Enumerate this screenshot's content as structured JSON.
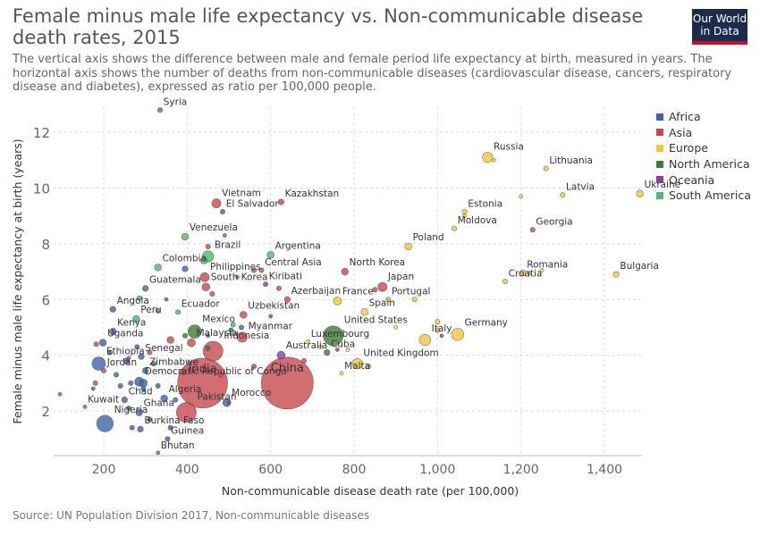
{
  "header": {
    "title": "Female minus male life expectancy vs. Non-communicable disease death rates, 2015",
    "subtitle": "The vertical axis shows the difference between male and female period life expectancy at birth, measured in years. The horizontal axis shows the number of deaths from non-communicable diseases (cardiovascular disease, cancers, respiratory disease and diabetes), expressed as ratio per 100,000 people."
  },
  "logo": {
    "line1": "Our World",
    "line2": "in Data"
  },
  "source": "Source: UN Population Division 2017, Non-communicable diseases",
  "legend": [
    {
      "name": "Africa",
      "color": "#3f63a8"
    },
    {
      "name": "Asia",
      "color": "#c7494f"
    },
    {
      "name": "Europe",
      "color": "#f2c53d"
    },
    {
      "name": "North America",
      "color": "#3e7a3a"
    },
    {
      "name": "Oceania",
      "color": "#8a3fa8"
    },
    {
      "name": "South America",
      "color": "#4fb86f"
    }
  ],
  "chart_data": {
    "type": "scatter",
    "title": "Female minus male life expectancy vs. Non-communicable disease death rates, 2015",
    "xlabel": "Non-communicable disease death rate (per 100,000)",
    "ylabel": "Female minus male life expectancy at birth (years)",
    "xlim": [
      80,
      1490
    ],
    "ylim": [
      0.4,
      12.9
    ],
    "xticks": [
      200,
      400,
      600,
      800,
      1000,
      1200,
      1400
    ],
    "xtick_labels": [
      "200",
      "400",
      "600",
      "800",
      "1,000",
      "1,200",
      "1,400"
    ],
    "yticks": [
      2,
      4,
      6,
      8,
      10,
      12
    ],
    "grid": true,
    "legend_position": "right",
    "points": [
      {
        "label": "Syria",
        "region": "Asia",
        "x": 335,
        "y": 12.8,
        "size": 2
      },
      {
        "label": "Russia",
        "region": "Europe",
        "x": 1120,
        "y": 11.1,
        "size": 7
      },
      {
        "label": "Lithuania",
        "region": "Europe",
        "x": 1260,
        "y": 10.7,
        "size": 2
      },
      {
        "label": "Latvia",
        "region": "Europe",
        "x": 1300,
        "y": 9.75,
        "size": 2
      },
      {
        "label": "Ukraine",
        "region": "Europe",
        "x": 1485,
        "y": 9.8,
        "size": 4
      },
      {
        "label": "Vietnam",
        "region": "Asia",
        "x": 470,
        "y": 9.45,
        "size": 6
      },
      {
        "label": "Kazakhstan",
        "region": "Asia",
        "x": 625,
        "y": 9.5,
        "size": 3
      },
      {
        "label": "El Salvador",
        "region": "North America",
        "x": 485,
        "y": 9.15,
        "size": 2
      },
      {
        "label": "Estonia",
        "region": "Europe",
        "x": 1065,
        "y": 9.15,
        "size": 2
      },
      {
        "label": "Moldova",
        "region": "Europe",
        "x": 1040,
        "y": 8.55,
        "size": 2
      },
      {
        "label": "Georgia",
        "region": "Asia",
        "x": 1228,
        "y": 8.5,
        "size": 2
      },
      {
        "label": "Venezuela",
        "region": "South America",
        "x": 395,
        "y": 8.25,
        "size": 4
      },
      {
        "label": "Poland",
        "region": "Europe",
        "x": 930,
        "y": 7.9,
        "size": 4
      },
      {
        "label": "Argentina",
        "region": "South America",
        "x": 600,
        "y": 7.6,
        "size": 4
      },
      {
        "label": "Brazil",
        "region": "South America",
        "x": 450,
        "y": 7.55,
        "size": 8
      },
      {
        "label": "Colombia",
        "region": "South America",
        "x": 330,
        "y": 7.15,
        "size": 4
      },
      {
        "label": "Central Asia",
        "region": "Asia",
        "x": 578,
        "y": 7.05,
        "size": 2
      },
      {
        "label": "North Korea",
        "region": "Asia",
        "x": 778,
        "y": 7.0,
        "size": 4
      },
      {
        "label": "Romania",
        "region": "Europe",
        "x": 1205,
        "y": 6.95,
        "size": 3
      },
      {
        "label": "Bulgaria",
        "region": "Europe",
        "x": 1428,
        "y": 6.9,
        "size": 3
      },
      {
        "label": "Philippines",
        "region": "Asia",
        "x": 442,
        "y": 6.8,
        "size": 6
      },
      {
        "label": "Croatia",
        "region": "Europe",
        "x": 1162,
        "y": 6.65,
        "size": 2
      },
      {
        "label": "Kiribati",
        "region": "Oceania",
        "x": 588,
        "y": 6.55,
        "size": 2
      },
      {
        "label": "South Korea",
        "region": "Asia",
        "x": 445,
        "y": 6.45,
        "size": 5
      },
      {
        "label": "Japan",
        "region": "Asia",
        "x": 868,
        "y": 6.45,
        "size": 6
      },
      {
        "label": "Guatemala",
        "region": "North America",
        "x": 300,
        "y": 6.4,
        "size": 3
      },
      {
        "label": "Azerbaijan",
        "region": "Asia",
        "x": 640,
        "y": 6.0,
        "size": 3
      },
      {
        "label": "Portugal",
        "region": "Europe",
        "x": 882,
        "y": 6.0,
        "size": 2
      },
      {
        "label": "France",
        "region": "Europe",
        "x": 760,
        "y": 5.95,
        "size": 5
      },
      {
        "label": "Angola",
        "region": "Africa",
        "x": 222,
        "y": 5.65,
        "size": 3
      },
      {
        "label": "Ecuador",
        "region": "South America",
        "x": 378,
        "y": 5.55,
        "size": 2
      },
      {
        "label": "Spain",
        "region": "Europe",
        "x": 825,
        "y": 5.55,
        "size": 4
      },
      {
        "label": "Uzbekistan",
        "region": "Asia",
        "x": 535,
        "y": 5.45,
        "size": 4
      },
      {
        "label": "Peru",
        "region": "South America",
        "x": 278,
        "y": 5.3,
        "size": 4
      },
      {
        "label": "Kenya",
        "region": "Africa",
        "x": 222,
        "y": 4.85,
        "size": 4
      },
      {
        "label": "Mexico",
        "region": "North America",
        "x": 418,
        "y": 4.85,
        "size": 10
      },
      {
        "label": "Myanmar",
        "region": "Asia",
        "x": 532,
        "y": 4.65,
        "size": 7
      },
      {
        "label": "United States",
        "region": "North America",
        "x": 750,
        "y": 4.7,
        "size": 16
      },
      {
        "label": "Germany",
        "region": "Europe",
        "x": 1048,
        "y": 4.75,
        "size": 9
      },
      {
        "label": "Uganda",
        "region": "Africa",
        "x": 198,
        "y": 4.45,
        "size": 4
      },
      {
        "label": "Malaysia",
        "region": "Asia",
        "x": 410,
        "y": 4.45,
        "size": 5
      },
      {
        "label": "Italy",
        "region": "Europe",
        "x": 970,
        "y": 4.55,
        "size": 8
      },
      {
        "label": "Luxembourg",
        "region": "Europe",
        "x": 690,
        "y": 4.5,
        "size": 1
      },
      {
        "label": "Indonesia",
        "region": "Asia",
        "x": 462,
        "y": 4.15,
        "size": 16
      },
      {
        "label": "Australia",
        "region": "Oceania",
        "x": 625,
        "y": 4.0,
        "size": 5
      },
      {
        "label": "Cuba",
        "region": "North America",
        "x": 735,
        "y": 4.1,
        "size": 3
      },
      {
        "label": "Ethiopia",
        "region": "Africa",
        "x": 188,
        "y": 3.7,
        "size": 10
      },
      {
        "label": "Senegal",
        "region": "Africa",
        "x": 290,
        "y": 3.95,
        "size": 3
      },
      {
        "label": "United Kingdom",
        "region": "Europe",
        "x": 808,
        "y": 3.7,
        "size": 7
      },
      {
        "label": "Jordan",
        "region": "Asia",
        "x": 200,
        "y": 3.45,
        "size": 2
      },
      {
        "label": "Zimbabwe",
        "region": "Africa",
        "x": 300,
        "y": 3.45,
        "size": 3
      },
      {
        "label": "Malta",
        "region": "Europe",
        "x": 770,
        "y": 3.35,
        "size": 1
      },
      {
        "label": "India",
        "region": "Asia",
        "x": 437,
        "y": 3.0,
        "size": 44
      },
      {
        "label": "China",
        "region": "Asia",
        "x": 640,
        "y": 3.0,
        "size": 46
      },
      {
        "label": "Democratic Republic of Congo",
        "region": "Africa",
        "x": 285,
        "y": 3.05,
        "size": 6
      },
      {
        "label": "Algeria",
        "region": "Africa",
        "x": 345,
        "y": 2.45,
        "size": 4
      },
      {
        "label": "Chad",
        "region": "Africa",
        "x": 250,
        "y": 2.4,
        "size": 3
      },
      {
        "label": "Morocco",
        "region": "Africa",
        "x": 495,
        "y": 2.3,
        "size": 5
      },
      {
        "label": "Pakistan",
        "region": "Asia",
        "x": 398,
        "y": 1.95,
        "size": 16
      },
      {
        "label": "Ghana",
        "region": "Africa",
        "x": 285,
        "y": 1.95,
        "size": 4
      },
      {
        "label": "Kuwait",
        "region": "Asia",
        "x": 155,
        "y": 2.15,
        "size": 1
      },
      {
        "label": "Nigeria",
        "region": "Africa",
        "x": 203,
        "y": 1.55,
        "size": 13
      },
      {
        "label": "Burkina Faso",
        "region": "Africa",
        "x": 288,
        "y": 1.35,
        "size": 3
      },
      {
        "label": "Guinea",
        "region": "Africa",
        "x": 353,
        "y": 1.0,
        "size": 2
      },
      {
        "label": "Bhutan",
        "region": "Asia",
        "x": 330,
        "y": 0.5,
        "size": 1
      }
    ],
    "unlabeled_points": [
      {
        "region": "Asia",
        "x": 95,
        "y": 2.6,
        "size": 1
      },
      {
        "region": "Asia",
        "x": 180,
        "y": 3.0,
        "size": 2
      },
      {
        "region": "Asia",
        "x": 182,
        "y": 4.4,
        "size": 2
      },
      {
        "region": "Africa",
        "x": 175,
        "y": 2.8,
        "size": 1
      },
      {
        "region": "Africa",
        "x": 215,
        "y": 4.1,
        "size": 2
      },
      {
        "region": "Africa",
        "x": 230,
        "y": 3.3,
        "size": 2
      },
      {
        "region": "Africa",
        "x": 240,
        "y": 2.9,
        "size": 2
      },
      {
        "region": "Africa",
        "x": 255,
        "y": 3.8,
        "size": 3
      },
      {
        "region": "Africa",
        "x": 260,
        "y": 2.1,
        "size": 2
      },
      {
        "region": "Africa",
        "x": 268,
        "y": 1.4,
        "size": 2
      },
      {
        "region": "Africa",
        "x": 280,
        "y": 4.3,
        "size": 2
      },
      {
        "region": "Africa",
        "x": 295,
        "y": 2.8,
        "size": 2
      },
      {
        "region": "Africa",
        "x": 310,
        "y": 1.7,
        "size": 2
      },
      {
        "region": "Africa",
        "x": 320,
        "y": 3.7,
        "size": 2
      },
      {
        "region": "Africa",
        "x": 330,
        "y": 2.9,
        "size": 2
      },
      {
        "region": "Africa",
        "x": 360,
        "y": 1.4,
        "size": 2
      },
      {
        "region": "Africa",
        "x": 395,
        "y": 7.1,
        "size": 3
      },
      {
        "region": "Africa",
        "x": 372,
        "y": 2.4,
        "size": 2
      },
      {
        "region": "Asia",
        "x": 310,
        "y": 4.1,
        "size": 2
      },
      {
        "region": "Asia",
        "x": 360,
        "y": 4.55,
        "size": 4
      },
      {
        "region": "Asia",
        "x": 390,
        "y": 3.4,
        "size": 3
      },
      {
        "region": "Asia",
        "x": 450,
        "y": 7.9,
        "size": 2
      },
      {
        "region": "Asia",
        "x": 460,
        "y": 6.2,
        "size": 2
      },
      {
        "region": "Asia",
        "x": 490,
        "y": 8.3,
        "size": 1
      },
      {
        "region": "Asia",
        "x": 520,
        "y": 6.8,
        "size": 1
      },
      {
        "region": "Asia",
        "x": 560,
        "y": 7.05,
        "size": 2
      },
      {
        "region": "Asia",
        "x": 620,
        "y": 6.4,
        "size": 2
      },
      {
        "region": "Asia",
        "x": 850,
        "y": 6.35,
        "size": 2
      },
      {
        "region": "Asia",
        "x": 680,
        "y": 3.8,
        "size": 2
      },
      {
        "region": "Asia",
        "x": 560,
        "y": 3.6,
        "size": 2
      },
      {
        "region": "Asia",
        "x": 480,
        "y": 3.3,
        "size": 2
      },
      {
        "region": "Africa",
        "x": 505,
        "y": 4.9,
        "size": 2
      },
      {
        "region": "Africa",
        "x": 530,
        "y": 5.0,
        "size": 2
      },
      {
        "region": "Africa",
        "x": 295,
        "y": 3.0,
        "size": 5
      },
      {
        "region": "Africa",
        "x": 265,
        "y": 3.0,
        "size": 2
      },
      {
        "region": "South America",
        "x": 285,
        "y": 6.05,
        "size": 2
      },
      {
        "region": "South America",
        "x": 330,
        "y": 5.6,
        "size": 2
      },
      {
        "region": "South America",
        "x": 510,
        "y": 5.1,
        "size": 2
      },
      {
        "region": "South America",
        "x": 440,
        "y": 7.4,
        "size": 4
      },
      {
        "region": "North America",
        "x": 350,
        "y": 6.0,
        "size": 1
      },
      {
        "region": "North America",
        "x": 395,
        "y": 4.7,
        "size": 2
      },
      {
        "region": "North America",
        "x": 450,
        "y": 4.25,
        "size": 2
      },
      {
        "region": "North America",
        "x": 600,
        "y": 5.4,
        "size": 1
      },
      {
        "region": "North America",
        "x": 1010,
        "y": 4.7,
        "size": 1
      },
      {
        "region": "Oceania",
        "x": 260,
        "y": 3.9,
        "size": 1
      },
      {
        "region": "Oceania",
        "x": 450,
        "y": 4.7,
        "size": 1
      },
      {
        "region": "Oceania",
        "x": 500,
        "y": 2.3,
        "size": 1
      },
      {
        "region": "Oceania",
        "x": 760,
        "y": 4.2,
        "size": 1
      },
      {
        "region": "Europe",
        "x": 1200,
        "y": 9.7,
        "size": 1
      },
      {
        "region": "Europe",
        "x": 1135,
        "y": 11.0,
        "size": 1
      },
      {
        "region": "Europe",
        "x": 1065,
        "y": 9.0,
        "size": 1
      },
      {
        "region": "Europe",
        "x": 1000,
        "y": 5.2,
        "size": 2
      },
      {
        "region": "Europe",
        "x": 945,
        "y": 6.0,
        "size": 2
      },
      {
        "region": "Europe",
        "x": 900,
        "y": 5.0,
        "size": 1
      },
      {
        "region": "Europe",
        "x": 835,
        "y": 3.6,
        "size": 2
      },
      {
        "region": "Europe",
        "x": 785,
        "y": 4.2,
        "size": 1
      },
      {
        "region": "Europe",
        "x": 720,
        "y": 4.3,
        "size": 1
      },
      {
        "region": "Europe",
        "x": 1000,
        "y": 4.9,
        "size": 2
      },
      {
        "region": "Europe",
        "x": 1220,
        "y": 6.95,
        "size": 1
      },
      {
        "region": "Europe",
        "x": 1250,
        "y": 7.05,
        "size": 1
      }
    ]
  }
}
